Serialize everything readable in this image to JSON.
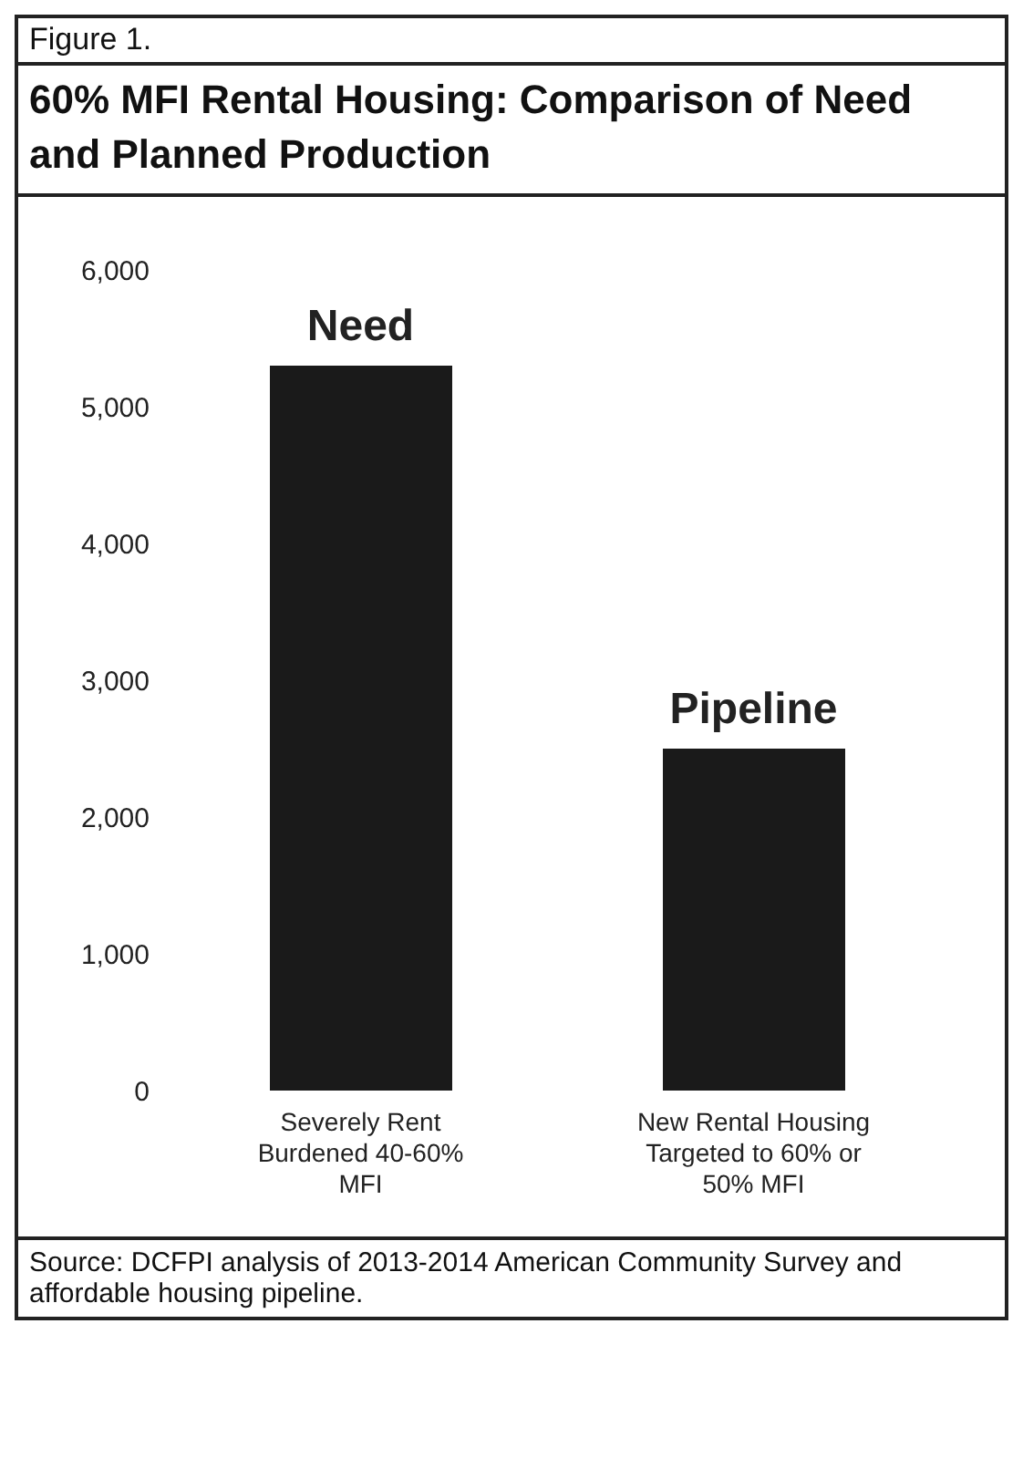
{
  "chart_data": {
    "type": "bar",
    "title": "60% MFI Rental Housing: Comparison of Need and Planned Production",
    "categories": [
      "Severely Rent Burdened 40-60% MFI",
      "New Rental Housing Targeted to 60% or 50% MFI"
    ],
    "values": [
      5300,
      2500
    ],
    "color": "#1a1a1a",
    "ylim": [
      0,
      6000
    ],
    "yticks": [
      0,
      {
        "value": 1000,
        "label": "1,000"
      },
      {
        "value": 2000,
        "label": "2,000"
      },
      {
        "value": 3000,
        "label": "3,000"
      },
      {
        "value": 4000,
        "label": "4,000"
      },
      {
        "value": 5000,
        "label": "5,000"
      },
      {
        "value": 6000,
        "label": "6,000"
      }
    ],
    "grid": false,
    "legend": false,
    "annotations": [
      "Figure 1.",
      {
        "text": "Need",
        "x": "Severely Rent Burdened 40-60% MFI",
        "y": 5300
      },
      {
        "text": "Pipeline",
        "x": "New Rental Housing Targeted to 60% or 50% MFI",
        "y": 2500
      },
      "Source: DCFPI analysis of 2013-2014 American Community Survey and affordable housing pipeline."
    ]
  }
}
